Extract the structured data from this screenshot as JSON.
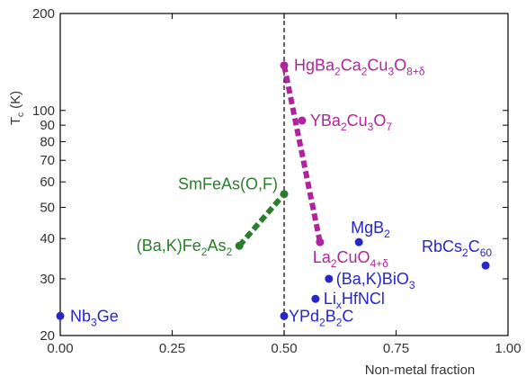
{
  "colors": {
    "purple": "#b0239f",
    "green": "#2a7d2a",
    "blue": "#2626c9",
    "axis": "#000000",
    "axis_label": "#333333"
  },
  "chart_data": {
    "type": "scatter",
    "title": "",
    "xlabel": "Non-metal fraction",
    "ylabel": "Tc (K)",
    "ylabel_main": "T",
    "ylabel_sub": "c",
    "ylabel_tail": " (K)",
    "yscale": "log",
    "xlim": [
      0.0,
      1.0
    ],
    "ylim": [
      20,
      200
    ],
    "x_ticks": [
      {
        "value": 0.0,
        "label": "0.00"
      },
      {
        "value": 0.25,
        "label": "0.25"
      },
      {
        "value": 0.5,
        "label": "0.50"
      },
      {
        "value": 0.75,
        "label": "0.75"
      },
      {
        "value": 1.0,
        "label": "1.00"
      }
    ],
    "y_ticks": [
      {
        "value": 20,
        "label": "20"
      },
      {
        "value": 30,
        "label": "30"
      },
      {
        "value": 40,
        "label": "40"
      },
      {
        "value": 50,
        "label": "50"
      },
      {
        "value": 60,
        "label": "60"
      },
      {
        "value": 70,
        "label": "70"
      },
      {
        "value": 80,
        "label": "80"
      },
      {
        "value": 90,
        "label": "90"
      },
      {
        "value": 100,
        "label": "100"
      },
      {
        "value": 200,
        "label": "200"
      }
    ],
    "vertical_reference_line": {
      "x": 0.5,
      "style": "dashed"
    },
    "points": [
      {
        "name": "HgBa2Ca2Cu3O8+δ",
        "x": 0.5,
        "y": 138,
        "color": "purple",
        "label": [
          {
            "t": "HgBa"
          },
          {
            "t": "2",
            "sub": true
          },
          {
            "t": "Ca"
          },
          {
            "t": "2",
            "sub": true
          },
          {
            "t": "Cu"
          },
          {
            "t": "3",
            "sub": true
          },
          {
            "t": "O"
          },
          {
            "t": "8+δ",
            "sub": true
          }
        ]
      },
      {
        "name": "YBa2Cu3O7",
        "x": 0.54,
        "y": 93,
        "color": "purple",
        "label": [
          {
            "t": "YBa"
          },
          {
            "t": "2",
            "sub": true
          },
          {
            "t": "Cu"
          },
          {
            "t": "3",
            "sub": true
          },
          {
            "t": "O"
          },
          {
            "t": "7",
            "sub": true
          }
        ]
      },
      {
        "name": "La2CuO4+δ",
        "x": 0.58,
        "y": 39,
        "color": "purple",
        "label": [
          {
            "t": "La"
          },
          {
            "t": "2",
            "sub": true
          },
          {
            "t": "CuO"
          },
          {
            "t": "4+δ",
            "sub": true
          }
        ]
      },
      {
        "name": "SmFeAs(O,F)",
        "x": 0.5,
        "y": 55,
        "color": "green",
        "label": [
          {
            "t": "SmFeAs(O,F)"
          }
        ]
      },
      {
        "name": "(Ba,K)Fe2As2",
        "x": 0.4,
        "y": 38,
        "color": "green",
        "label": [
          {
            "t": "(Ba,K)Fe"
          },
          {
            "t": "2",
            "sub": true
          },
          {
            "t": "As"
          },
          {
            "t": "2",
            "sub": true
          }
        ]
      },
      {
        "name": "MgB2",
        "x": 0.667,
        "y": 39,
        "color": "blue",
        "label": [
          {
            "t": "MgB"
          },
          {
            "t": "2",
            "sub": true
          }
        ]
      },
      {
        "name": "RbCs2C60",
        "x": 0.95,
        "y": 33,
        "color": "blue",
        "label": [
          {
            "t": "RbCs"
          },
          {
            "t": "2",
            "sub": true
          },
          {
            "t": "C"
          },
          {
            "t": "60",
            "sub": true
          }
        ]
      },
      {
        "name": "(Ba,K)BiO3",
        "x": 0.6,
        "y": 30,
        "color": "blue",
        "label": [
          {
            "t": "(Ba,K)BiO"
          },
          {
            "t": "3",
            "sub": true
          }
        ]
      },
      {
        "name": "LixHfNCl",
        "x": 0.57,
        "y": 26,
        "color": "blue",
        "label": [
          {
            "t": "Li"
          },
          {
            "t": "x",
            "sub": true
          },
          {
            "t": "HfNCl"
          }
        ]
      },
      {
        "name": "YPd2B2C",
        "x": 0.5,
        "y": 23,
        "color": "blue",
        "label": [
          {
            "t": "YPd"
          },
          {
            "t": "2",
            "sub": true
          },
          {
            "t": "B"
          },
          {
            "t": "2",
            "sub": true
          },
          {
            "t": "C"
          }
        ]
      },
      {
        "name": "Nb3Ge",
        "x": 0.0,
        "y": 23,
        "color": "blue",
        "label": [
          {
            "t": "Nb"
          },
          {
            "t": "3",
            "sub": true
          },
          {
            "t": "Ge"
          }
        ]
      }
    ],
    "connections": [
      {
        "from": "HgBa2Ca2Cu3O8+δ",
        "to": "La2CuO4+δ",
        "color": "purple",
        "style": "thick-dotted"
      },
      {
        "from": "(Ba,K)Fe2As2",
        "to": "SmFeAs(O,F)",
        "color": "green",
        "style": "thick-dotted"
      }
    ],
    "grid": false,
    "legend": "none"
  }
}
